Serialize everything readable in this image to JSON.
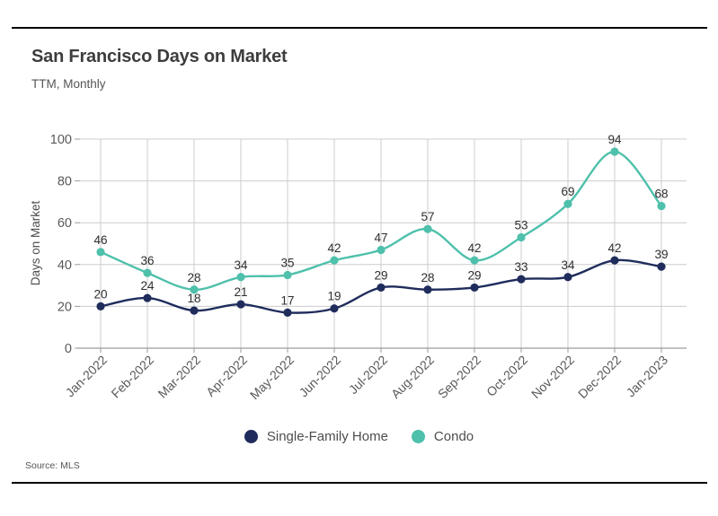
{
  "chart_data": {
    "type": "line",
    "title": "San Francisco Days on Market",
    "subtitle": "TTM, Monthly",
    "ylabel": "Days on Market",
    "xlabel": "",
    "source": "Source: MLS",
    "categories": [
      "Jan-2022",
      "Feb-2022",
      "Mar-2022",
      "Apr-2022",
      "May-2022",
      "Jun-2022",
      "Jul-2022",
      "Aug-2022",
      "Sep-2022",
      "Oct-2022",
      "Nov-2022",
      "Dec-2022",
      "Jan-2023"
    ],
    "series": [
      {
        "name": "Single-Family Home",
        "color": "#1f2c5c",
        "values": [
          20,
          24,
          18,
          21,
          17,
          19,
          29,
          28,
          29,
          33,
          34,
          42,
          39
        ]
      },
      {
        "name": "Condo",
        "color": "#4ec0ab",
        "values": [
          46,
          36,
          28,
          34,
          35,
          42,
          47,
          57,
          42,
          53,
          69,
          94,
          68
        ]
      }
    ],
    "yticks": [
      0,
      20,
      40,
      60,
      80,
      100
    ],
    "ylim": [
      0,
      100
    ],
    "grid": true,
    "legend_position": "bottom",
    "colors": {
      "grid": "#cccccc",
      "axis": "#9c9c9c",
      "tick_label": "#595959",
      "data_label": "#2e2e2e",
      "rule": "#000000"
    }
  }
}
